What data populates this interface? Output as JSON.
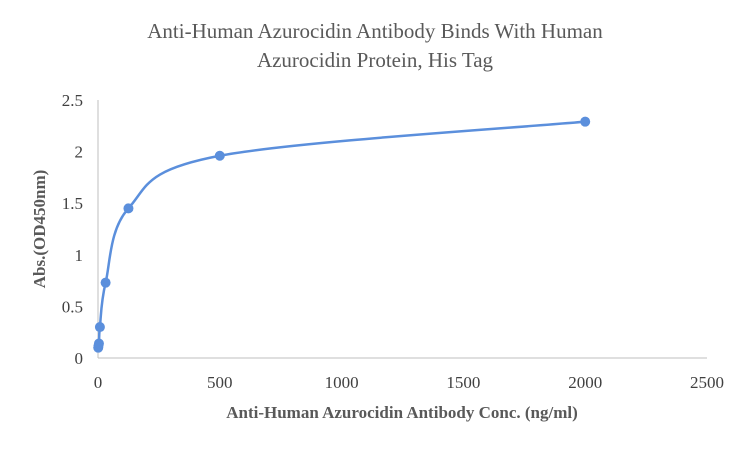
{
  "chart_data": {
    "type": "scatter",
    "title_lines": [
      "Anti-Human Azurocidin Antibody Binds With Human",
      "Azurocidin Protein, His Tag"
    ],
    "xlabel": "Anti-Human Azurocidin Antibody Conc. (ng/ml)",
    "ylabel": "Abs.(OD450nm)",
    "xlim": [
      0,
      2500
    ],
    "ylim": [
      0,
      2.5
    ],
    "x_ticks": [
      0,
      500,
      1000,
      1500,
      2000,
      2500
    ],
    "y_ticks": [
      0,
      0.5,
      1,
      1.5,
      2,
      2.5
    ],
    "x_tick_labels": [
      "0",
      "500",
      "1000",
      "1500",
      "2000",
      "2500"
    ],
    "y_tick_labels": [
      "0",
      "0.5",
      "1",
      "1.5",
      "2",
      "2.5"
    ],
    "grid": false,
    "legend": "none",
    "series": [
      {
        "color": "#5b8fdc",
        "smooth_line": true,
        "x": [
          0.98,
          1.95,
          3.9,
          7.8,
          31.25,
          125,
          500,
          2000
        ],
        "y": [
          0.1,
          0.12,
          0.14,
          0.3,
          0.73,
          1.45,
          1.96,
          2.29
        ]
      }
    ]
  }
}
